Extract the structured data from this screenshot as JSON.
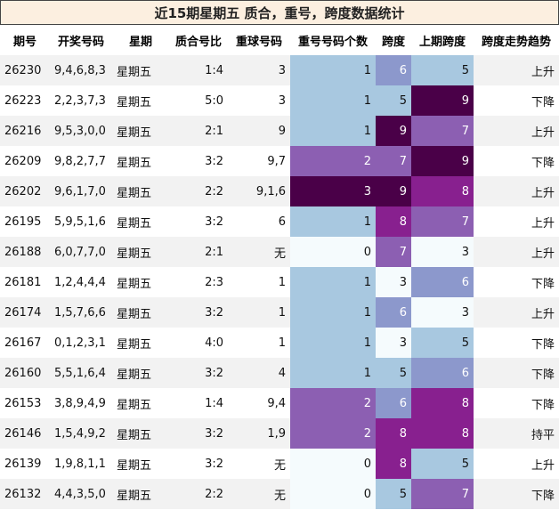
{
  "title": "近15期星期五 质合，重号，跨度数据统计",
  "headers": [
    "期号",
    "开奖号码",
    "星期",
    "质合号比",
    "重球号码",
    "重号号码个数",
    "跨度",
    "上期跨度",
    "跨度走势趋势"
  ],
  "rows": [
    {
      "issue": "26230",
      "numbers": "9,4,6,8,3",
      "weekday": "星期五",
      "ratio": "1:4",
      "repeat_nums": "3",
      "repeat_count": "1",
      "span": "6",
      "prev_span": "5",
      "trend": "上升"
    },
    {
      "issue": "26223",
      "numbers": "2,2,3,7,3",
      "weekday": "星期五",
      "ratio": "5:0",
      "repeat_nums": "3",
      "repeat_count": "1",
      "span": "5",
      "prev_span": "9",
      "trend": "下降"
    },
    {
      "issue": "26216",
      "numbers": "9,5,3,0,0",
      "weekday": "星期五",
      "ratio": "2:1",
      "repeat_nums": "9",
      "repeat_count": "1",
      "span": "9",
      "prev_span": "7",
      "trend": "上升"
    },
    {
      "issue": "26209",
      "numbers": "9,8,2,7,7",
      "weekday": "星期五",
      "ratio": "3:2",
      "repeat_nums": "9,7",
      "repeat_count": "2",
      "span": "7",
      "prev_span": "9",
      "trend": "下降"
    },
    {
      "issue": "26202",
      "numbers": "9,6,1,7,0",
      "weekday": "星期五",
      "ratio": "2:2",
      "repeat_nums": "9,1,6",
      "repeat_count": "3",
      "span": "9",
      "prev_span": "8",
      "trend": "上升"
    },
    {
      "issue": "26195",
      "numbers": "5,9,5,1,6",
      "weekday": "星期五",
      "ratio": "3:2",
      "repeat_nums": "6",
      "repeat_count": "1",
      "span": "8",
      "prev_span": "7",
      "trend": "上升"
    },
    {
      "issue": "26188",
      "numbers": "6,0,7,7,0",
      "weekday": "星期五",
      "ratio": "2:1",
      "repeat_nums": "无",
      "repeat_count": "0",
      "span": "7",
      "prev_span": "3",
      "trend": "上升"
    },
    {
      "issue": "26181",
      "numbers": "1,2,4,4,4",
      "weekday": "星期五",
      "ratio": "2:3",
      "repeat_nums": "1",
      "repeat_count": "1",
      "span": "3",
      "prev_span": "6",
      "trend": "下降"
    },
    {
      "issue": "26174",
      "numbers": "1,5,7,6,6",
      "weekday": "星期五",
      "ratio": "3:2",
      "repeat_nums": "1",
      "repeat_count": "1",
      "span": "6",
      "prev_span": "3",
      "trend": "上升"
    },
    {
      "issue": "26167",
      "numbers": "0,1,2,3,1",
      "weekday": "星期五",
      "ratio": "4:0",
      "repeat_nums": "1",
      "repeat_count": "1",
      "span": "3",
      "prev_span": "5",
      "trend": "下降"
    },
    {
      "issue": "26160",
      "numbers": "5,5,1,6,4",
      "weekday": "星期五",
      "ratio": "3:2",
      "repeat_nums": "4",
      "repeat_count": "1",
      "span": "5",
      "prev_span": "6",
      "trend": "下降"
    },
    {
      "issue": "26153",
      "numbers": "3,8,9,4,9",
      "weekday": "星期五",
      "ratio": "1:4",
      "repeat_nums": "9,4",
      "repeat_count": "2",
      "span": "6",
      "prev_span": "8",
      "trend": "下降"
    },
    {
      "issue": "26146",
      "numbers": "1,5,4,9,2",
      "weekday": "星期五",
      "ratio": "3:2",
      "repeat_nums": "1,9",
      "repeat_count": "2",
      "span": "8",
      "prev_span": "8",
      "trend": "持平"
    },
    {
      "issue": "26139",
      "numbers": "1,9,8,1,1",
      "weekday": "星期五",
      "ratio": "3:2",
      "repeat_nums": "无",
      "repeat_count": "0",
      "span": "8",
      "prev_span": "5",
      "trend": "上升"
    },
    {
      "issue": "26132",
      "numbers": "4,4,3,5,0",
      "weekday": "星期五",
      "ratio": "2:2",
      "repeat_nums": "无",
      "repeat_count": "0",
      "span": "5",
      "prev_span": "7",
      "trend": "下降"
    }
  ],
  "heat_colors": {
    "repeat_count": {
      "0": "#f5fbfd",
      "1": "#a8c8e0",
      "2": "#8c5fb2",
      "3": "#4a0048"
    },
    "span": {
      "3": "#f5fbfd",
      "5": "#a8c8e0",
      "6": "#8c98cc",
      "7": "#8c5fb2",
      "8": "#88208f",
      "9": "#4a0048"
    }
  }
}
